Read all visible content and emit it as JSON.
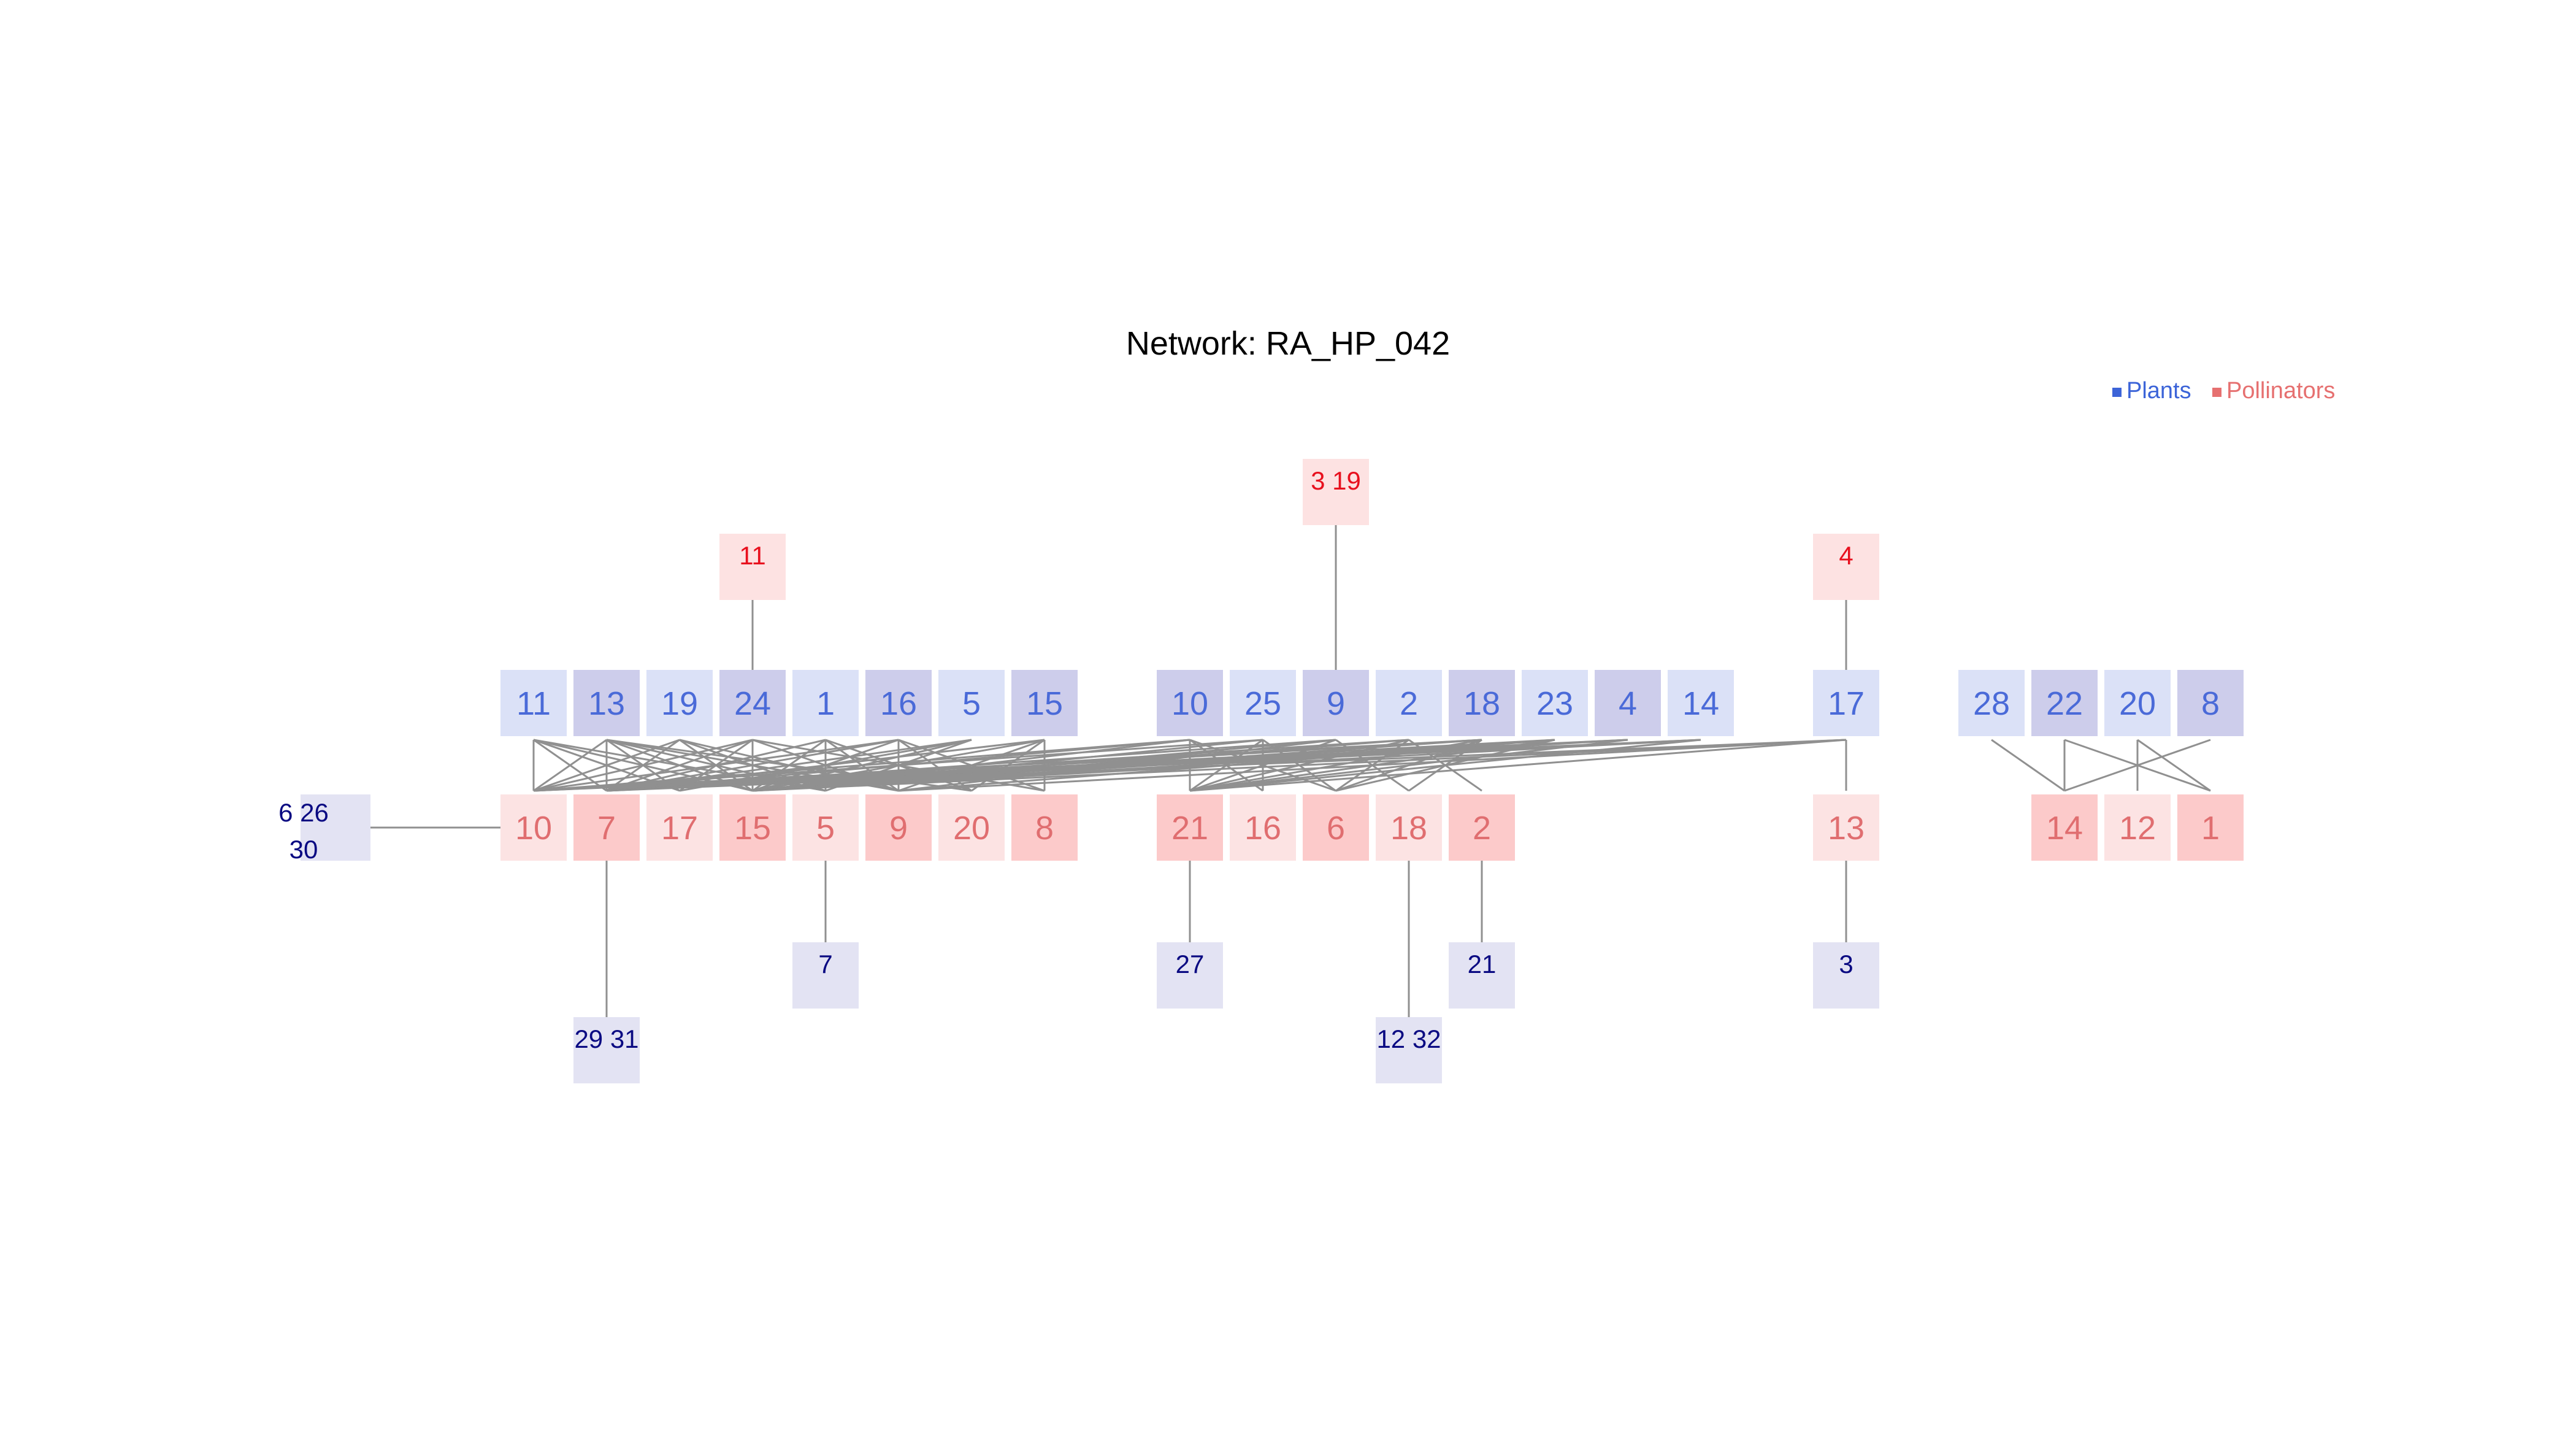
{
  "title": "Network: RA_HP_042",
  "legend": {
    "plants": "Plants",
    "pollinators": "Pollinators"
  },
  "colors": {
    "plant_text": "#4a6ad8",
    "pollinator_text": "#e06e70",
    "plant_light": "#dbe1f7",
    "plant_dark": "#cdcdeb",
    "pollinator_light": "#fce3e3",
    "pollinator_dark": "#fccaca",
    "extra_pollinator_fill": "#fde2e2",
    "extra_pollinator_text": "#e8101e",
    "extra_plant_fill": "#e3e3f3",
    "extra_plant_text": "#0a0a82",
    "edge": "#909090",
    "legend_plants": "#3c64d8",
    "legend_pollinators": "#e67070"
  },
  "plants": [
    {
      "label": "11",
      "shade": "light"
    },
    {
      "label": "13",
      "shade": "dark"
    },
    {
      "label": "19",
      "shade": "light"
    },
    {
      "label": "24",
      "shade": "dark"
    },
    {
      "label": "1",
      "shade": "light"
    },
    {
      "label": "16",
      "shade": "dark"
    },
    {
      "label": "5",
      "shade": "light"
    },
    {
      "label": "15",
      "shade": "dark"
    },
    {
      "label": "10",
      "shade": "dark"
    },
    {
      "label": "25",
      "shade": "light"
    },
    {
      "label": "9",
      "shade": "dark"
    },
    {
      "label": "2",
      "shade": "light"
    },
    {
      "label": "18",
      "shade": "dark"
    },
    {
      "label": "23",
      "shade": "light"
    },
    {
      "label": "4",
      "shade": "dark"
    },
    {
      "label": "14",
      "shade": "light"
    },
    {
      "label": "17",
      "shade": "light"
    },
    {
      "label": "28",
      "shade": "light"
    },
    {
      "label": "22",
      "shade": "dark"
    },
    {
      "label": "20",
      "shade": "light"
    },
    {
      "label": "8",
      "shade": "dark"
    }
  ],
  "pollinators": [
    {
      "label": "10",
      "shade": "light"
    },
    {
      "label": "7",
      "shade": "dark"
    },
    {
      "label": "17",
      "shade": "light"
    },
    {
      "label": "15",
      "shade": "dark"
    },
    {
      "label": "5",
      "shade": "light"
    },
    {
      "label": "9",
      "shade": "dark"
    },
    {
      "label": "20",
      "shade": "light"
    },
    {
      "label": "8",
      "shade": "dark"
    },
    {
      "label": "21",
      "shade": "dark"
    },
    {
      "label": "16",
      "shade": "light"
    },
    {
      "label": "6",
      "shade": "dark"
    },
    {
      "label": "18",
      "shade": "light"
    },
    {
      "label": "2",
      "shade": "dark"
    },
    {
      "label": "13",
      "shade": "light"
    },
    {
      "label": "14",
      "shade": "dark"
    },
    {
      "label": "12",
      "shade": "light"
    },
    {
      "label": "1",
      "shade": "dark"
    }
  ],
  "extra_pollinators": [
    {
      "label": "11",
      "attached_plant": "24"
    },
    {
      "label": "3 19",
      "attached_plant": "9"
    },
    {
      "label": "4",
      "attached_plant": "17"
    }
  ],
  "extra_plants": [
    {
      "label": "6 26\n30",
      "attached_pollinator": "10"
    },
    {
      "label": "29 31",
      "attached_pollinator": "7"
    },
    {
      "label": "7",
      "attached_pollinator": "5"
    },
    {
      "label": "27",
      "attached_pollinator": "21"
    },
    {
      "label": "12 32",
      "attached_pollinator": "18"
    },
    {
      "label": "21",
      "attached_pollinator": "2"
    },
    {
      "label": "3",
      "attached_pollinator": "13"
    }
  ],
  "interactions": [
    [
      "11",
      "10"
    ],
    [
      "11",
      "7"
    ],
    [
      "11",
      "17"
    ],
    [
      "11",
      "15"
    ],
    [
      "11",
      "5"
    ],
    [
      "13",
      "10"
    ],
    [
      "13",
      "7"
    ],
    [
      "13",
      "17"
    ],
    [
      "13",
      "15"
    ],
    [
      "13",
      "5"
    ],
    [
      "13",
      "9"
    ],
    [
      "13",
      "20"
    ],
    [
      "19",
      "10"
    ],
    [
      "19",
      "7"
    ],
    [
      "19",
      "15"
    ],
    [
      "19",
      "5"
    ],
    [
      "19",
      "9"
    ],
    [
      "24",
      "10"
    ],
    [
      "24",
      "7"
    ],
    [
      "24",
      "17"
    ],
    [
      "24",
      "15"
    ],
    [
      "24",
      "9"
    ],
    [
      "24",
      "8"
    ],
    [
      "1",
      "7"
    ],
    [
      "1",
      "15"
    ],
    [
      "1",
      "5"
    ],
    [
      "1",
      "9"
    ],
    [
      "1",
      "20"
    ],
    [
      "16",
      "10"
    ],
    [
      "16",
      "7"
    ],
    [
      "16",
      "15"
    ],
    [
      "16",
      "9"
    ],
    [
      "16",
      "20"
    ],
    [
      "16",
      "8"
    ],
    [
      "5",
      "7"
    ],
    [
      "5",
      "17"
    ],
    [
      "5",
      "15"
    ],
    [
      "5",
      "5"
    ],
    [
      "15",
      "7"
    ],
    [
      "15",
      "15"
    ],
    [
      "15",
      "9"
    ],
    [
      "15",
      "20"
    ],
    [
      "15",
      "8"
    ],
    [
      "10",
      "10"
    ],
    [
      "10",
      "7"
    ],
    [
      "10",
      "15"
    ],
    [
      "10",
      "21"
    ],
    [
      "10",
      "16"
    ],
    [
      "10",
      "6"
    ],
    [
      "25",
      "10"
    ],
    [
      "25",
      "15"
    ],
    [
      "25",
      "21"
    ],
    [
      "25",
      "16"
    ],
    [
      "25",
      "6"
    ],
    [
      "9",
      "7"
    ],
    [
      "9",
      "15"
    ],
    [
      "9",
      "9"
    ],
    [
      "9",
      "21"
    ],
    [
      "9",
      "18"
    ],
    [
      "2",
      "7"
    ],
    [
      "2",
      "15"
    ],
    [
      "2",
      "21"
    ],
    [
      "2",
      "6"
    ],
    [
      "2",
      "2"
    ],
    [
      "18",
      "10"
    ],
    [
      "18",
      "7"
    ],
    [
      "18",
      "15"
    ],
    [
      "18",
      "21"
    ],
    [
      "18",
      "6"
    ],
    [
      "18",
      "18"
    ],
    [
      "23",
      "7"
    ],
    [
      "23",
      "15"
    ],
    [
      "23",
      "9"
    ],
    [
      "23",
      "21"
    ],
    [
      "23",
      "6"
    ],
    [
      "4",
      "10"
    ],
    [
      "4",
      "7"
    ],
    [
      "4",
      "15"
    ],
    [
      "4",
      "21"
    ],
    [
      "14",
      "10"
    ],
    [
      "14",
      "7"
    ],
    [
      "14",
      "15"
    ],
    [
      "14",
      "21"
    ],
    [
      "17",
      "7"
    ],
    [
      "17",
      "15"
    ],
    [
      "17",
      "9"
    ],
    [
      "17",
      "21"
    ],
    [
      "17",
      "13"
    ],
    [
      "28",
      "14"
    ],
    [
      "22",
      "14"
    ],
    [
      "22",
      "1"
    ],
    [
      "20",
      "12"
    ],
    [
      "20",
      "1"
    ],
    [
      "8",
      "14"
    ]
  ]
}
